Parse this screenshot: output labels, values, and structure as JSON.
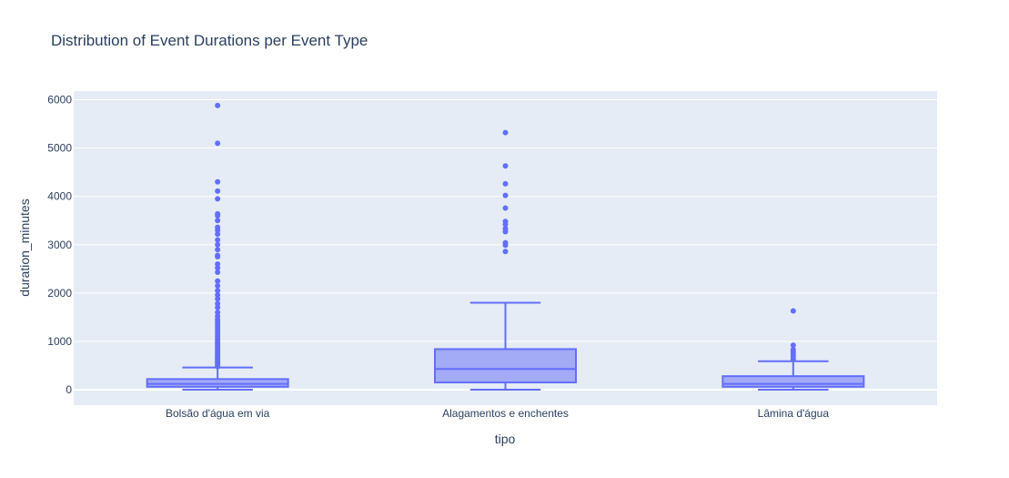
{
  "chart_data": {
    "type": "box",
    "title": "Distribution of Event Durations per Event Type",
    "xlabel": "tipo",
    "ylabel": "duration_minutes",
    "ylim": [
      -320,
      6180
    ],
    "y_ticks": [
      0,
      1000,
      2000,
      3000,
      4000,
      5000,
      6000
    ],
    "y_tick_labels": [
      "0",
      "1000",
      "2000",
      "3000",
      "4000",
      "5000",
      "6000"
    ],
    "categories": [
      "Bolsão d'água em via",
      "Alagamentos e enchentes",
      "Lâmina d'água"
    ],
    "grid": true,
    "colors": {
      "plot_bg": "#e5ecf6",
      "grid": "#ffffff",
      "box_line": "#636efa",
      "box_fill": "#a3aaf6",
      "text": "#2a3f5f"
    },
    "series": [
      {
        "category": "Bolsão d'água em via",
        "min": 0,
        "q1": 60,
        "median": 120,
        "q3": 220,
        "max": 460,
        "outliers": [
          480,
          510,
          540,
          570,
          600,
          630,
          660,
          690,
          720,
          760,
          800,
          840,
          880,
          920,
          960,
          1000,
          1050,
          1100,
          1150,
          1200,
          1250,
          1300,
          1350,
          1400,
          1450,
          1520,
          1600,
          1700,
          1780,
          1880,
          1960,
          2050,
          2150,
          2250,
          2430,
          2520,
          2600,
          2750,
          2780,
          2900,
          3000,
          3100,
          3220,
          3300,
          3360,
          3500,
          3600,
          3640,
          3950,
          4110,
          4300,
          5100,
          5880
        ]
      },
      {
        "category": "Alagamentos e enchentes",
        "min": 0,
        "q1": 150,
        "median": 430,
        "q3": 840,
        "max": 1800,
        "outliers": [
          2860,
          2990,
          3040,
          3270,
          3330,
          3420,
          3480,
          3760,
          4020,
          4260,
          4630,
          5320
        ]
      },
      {
        "category": "Lâmina d'água",
        "min": 0,
        "q1": 60,
        "median": 120,
        "q3": 280,
        "max": 590,
        "outliers": [
          630,
          680,
          730,
          780,
          830,
          920,
          1630
        ]
      }
    ]
  }
}
